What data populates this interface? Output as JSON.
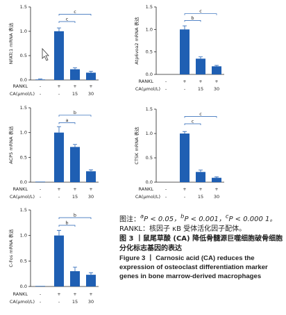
{
  "chart_data": [
    {
      "type": "bar",
      "y_label": "NFATc1 mRNA 表达",
      "ylim": [
        0,
        1.5
      ],
      "yticks": [
        {
          "value": 0,
          "label": "0.0"
        },
        {
          "value": 0.5,
          "label": "0.5"
        },
        {
          "value": 1,
          "label": "1.0"
        },
        {
          "value": 1.5,
          "label": "1.5"
        }
      ],
      "values": [
        0.01,
        1.0,
        0.22,
        0.15
      ],
      "errors": [
        0.01,
        0.07,
        0.03,
        0.03
      ],
      "color": "#1f5fb3",
      "treatments": [
        {
          "label": "RANKL",
          "values": [
            "-",
            "+",
            "+",
            "+"
          ]
        },
        {
          "label": "CA(μmol/L)",
          "values": [
            "-",
            "-",
            "15",
            "30"
          ]
        }
      ],
      "significance": [
        "c",
        "c"
      ]
    },
    {
      "type": "bar",
      "y_label": "Atp6voa2 mRNA 表达",
      "ylim": [
        0,
        1.5
      ],
      "yticks": [
        {
          "value": 0,
          "label": "0.0"
        },
        {
          "value": 0.5,
          "label": "0.5"
        },
        {
          "value": 1,
          "label": "1.0"
        },
        {
          "value": 1.5,
          "label": "1.5"
        }
      ],
      "values": [
        0,
        1.0,
        0.35,
        0.18
      ],
      "errors": [
        0,
        0.08,
        0.04,
        0.02
      ],
      "color": "#1f5fb3",
      "treatments": [
        {
          "label": "RANKL",
          "values": [
            "-",
            "+",
            "+",
            "+"
          ]
        },
        {
          "label": "CA(μmol/L)",
          "values": [
            "-",
            "-",
            "15",
            "30"
          ]
        }
      ],
      "significance": [
        "b",
        "c"
      ]
    },
    {
      "type": "bar",
      "y_label": "ACP5 mRNA 表达",
      "ylim": [
        0,
        1.5
      ],
      "yticks": [
        {
          "value": 0,
          "label": "0.0"
        },
        {
          "value": 0.5,
          "label": "0.5"
        },
        {
          "value": 1,
          "label": "1.0"
        },
        {
          "value": 1.5,
          "label": "1.5"
        }
      ],
      "values": [
        0.01,
        1.0,
        0.71,
        0.22
      ],
      "errors": [
        0,
        0.12,
        0.05,
        0.03
      ],
      "color": "#1f5fb3",
      "treatments": [
        {
          "label": "RANKL",
          "values": [
            "-",
            "+",
            "+",
            "+"
          ]
        },
        {
          "label": "CA(μmol/L)",
          "values": [
            "-",
            "-",
            "15",
            "30"
          ]
        }
      ],
      "significance": [
        "a",
        "b"
      ]
    },
    {
      "type": "bar",
      "y_label": "CTSK mRNA 表达",
      "ylim": [
        0,
        1.5
      ],
      "yticks": [
        {
          "value": 0,
          "label": "0.0"
        },
        {
          "value": 0.5,
          "label": "0.5"
        },
        {
          "value": 1,
          "label": "1.0"
        },
        {
          "value": 1.5,
          "label": "1.5"
        }
      ],
      "values": [
        0,
        1.0,
        0.21,
        0.09
      ],
      "errors": [
        0,
        0.04,
        0.04,
        0.02
      ],
      "color": "#1f5fb3",
      "treatments": [
        {
          "label": "RANKL",
          "values": [
            "-",
            "+",
            "+",
            "+"
          ]
        },
        {
          "label": "CA(μmol/L)",
          "values": [
            "-",
            "-",
            "15",
            "30"
          ]
        }
      ],
      "significance": [
        "c",
        "c"
      ]
    },
    {
      "type": "bar",
      "y_label": "C-Fos mRNA 表达",
      "ylim": [
        0,
        1.5
      ],
      "yticks": [
        {
          "value": 0,
          "label": "0.0"
        },
        {
          "value": 0.5,
          "label": "0.5"
        },
        {
          "value": 1,
          "label": "1.0"
        },
        {
          "value": 1.5,
          "label": "1.5"
        }
      ],
      "values": [
        0.01,
        1.0,
        0.3,
        0.23
      ],
      "errors": [
        0,
        0.1,
        0.08,
        0.04
      ],
      "color": "#1f5fb3",
      "treatments": [
        {
          "label": "RANKL",
          "values": [
            "-",
            "+",
            "+",
            "+"
          ]
        },
        {
          "label": "CA(μmol/L)",
          "values": [
            "-",
            "-",
            "15",
            "30"
          ]
        }
      ],
      "significance": [
        "b",
        "b"
      ]
    }
  ],
  "caption": {
    "note": {
      "prefix": "图注：",
      "items": [
        {
          "mark": "a",
          "text": "P < 0.05，"
        },
        {
          "mark": "b",
          "text": "P < 0.001，"
        },
        {
          "mark": "c",
          "text": "P < 0.000 1。"
        }
      ]
    },
    "abbrev": "RANKL：核因子 κB 受体活化因子配体。",
    "title_cn": "图 3 丨鼠尾草酸 (CA) 降低骨髓源巨噬细胞破骨细胞分化标志基因的表达",
    "title_en": "Figure 3 丨 Carnosic acid (CA) reduces the expression of osteoclast differentiation marker genes in bone marrow-derived macrophages"
  }
}
